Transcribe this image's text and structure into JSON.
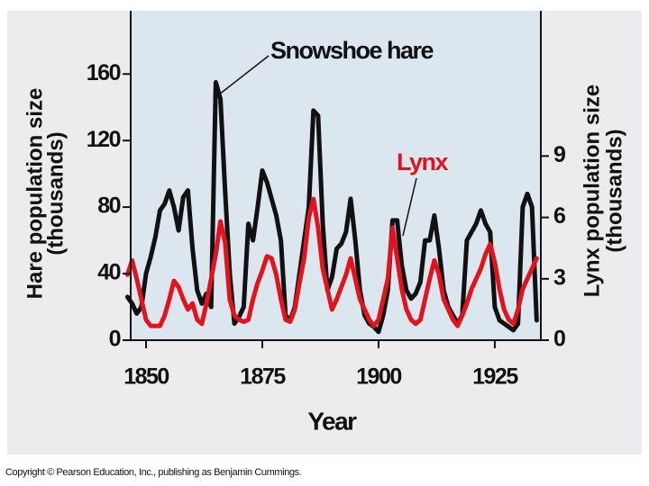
{
  "chart_data": {
    "type": "line",
    "xlabel": "Year",
    "ylabel": [
      "Hare population size",
      "(thousands)"
    ],
    "y2label": [
      "Lynx population size",
      "(thousands)"
    ],
    "footnote": "Copyright © Pearson Education, Inc., publishing as Benjamin Cummings.",
    "x": [
      1846,
      1847,
      1848,
      1849,
      1850,
      1851,
      1852,
      1853,
      1854,
      1855,
      1856,
      1857,
      1858,
      1859,
      1860,
      1861,
      1862,
      1863,
      1864,
      1865,
      1866,
      1867,
      1868,
      1869,
      1870,
      1871,
      1872,
      1873,
      1874,
      1875,
      1876,
      1877,
      1878,
      1879,
      1880,
      1881,
      1882,
      1883,
      1884,
      1885,
      1886,
      1887,
      1888,
      1889,
      1890,
      1891,
      1892,
      1893,
      1894,
      1895,
      1896,
      1897,
      1898,
      1899,
      1900,
      1901,
      1902,
      1903,
      1904,
      1905,
      1906,
      1907,
      1908,
      1909,
      1910,
      1911,
      1912,
      1913,
      1914,
      1915,
      1916,
      1917,
      1918,
      1919,
      1920,
      1921,
      1922,
      1923,
      1924,
      1925,
      1926,
      1927,
      1928,
      1929,
      1930,
      1931,
      1932,
      1933,
      1934
    ],
    "series": [
      {
        "name": "Snowshoe hare",
        "color": "#111111",
        "values": [
          26,
          22,
          16,
          20,
          40,
          50,
          62,
          78,
          82,
          90,
          80,
          66,
          86,
          90,
          55,
          30,
          22,
          28,
          20,
          155,
          145,
          90,
          40,
          10,
          14,
          20,
          70,
          60,
          80,
          102,
          95,
          85,
          75,
          60,
          15,
          12,
          20,
          40,
          60,
          80,
          138,
          135,
          70,
          30,
          38,
          55,
          58,
          65,
          85,
          60,
          30,
          15,
          10,
          8,
          5,
          15,
          30,
          72,
          72,
          45,
          30,
          25,
          28,
          35,
          60,
          60,
          75,
          55,
          30,
          20,
          15,
          10,
          15,
          60,
          65,
          70,
          78,
          70,
          65,
          20,
          12,
          10,
          8,
          6,
          10,
          80,
          88,
          80,
          12
        ]
      },
      {
        "name": "Lynx",
        "color": "#e0141e",
        "axis": "y2",
        "values": [
          3.2,
          3.9,
          3.0,
          2.0,
          1.0,
          0.7,
          0.7,
          0.7,
          1.2,
          2.0,
          2.9,
          2.6,
          2.0,
          1.5,
          1.8,
          1.0,
          0.8,
          1.8,
          3.0,
          4.2,
          5.8,
          4.8,
          2.0,
          1.2,
          1.0,
          0.9,
          1.0,
          2.0,
          2.8,
          3.4,
          4.1,
          4.0,
          3.2,
          2.0,
          1.0,
          0.9,
          1.5,
          2.8,
          4.0,
          6.0,
          6.9,
          5.5,
          3.5,
          2.5,
          1.5,
          2.0,
          2.6,
          3.2,
          4.0,
          3.0,
          2.0,
          1.5,
          1.0,
          0.7,
          1.0,
          2.0,
          3.0,
          5.5,
          4.0,
          2.5,
          1.5,
          1.0,
          0.8,
          1.0,
          2.0,
          3.0,
          3.9,
          3.2,
          2.0,
          1.5,
          1.0,
          0.7,
          1.2,
          1.8,
          2.5,
          3.0,
          3.5,
          4.2,
          4.7,
          3.8,
          2.5,
          1.5,
          1.0,
          0.8,
          1.5,
          2.5,
          3.0,
          3.5,
          4.0
        ]
      }
    ],
    "xlim": [
      1846.7,
      1934.9
    ],
    "xticks": [
      1850,
      1875,
      1900,
      1925
    ],
    "ylim": [
      0,
      198
    ],
    "yticks": [
      0,
      40,
      80,
      120,
      160
    ],
    "y2lim": [
      0,
      16.1
    ],
    "y2ticks": [
      0,
      3,
      6,
      9
    ]
  }
}
